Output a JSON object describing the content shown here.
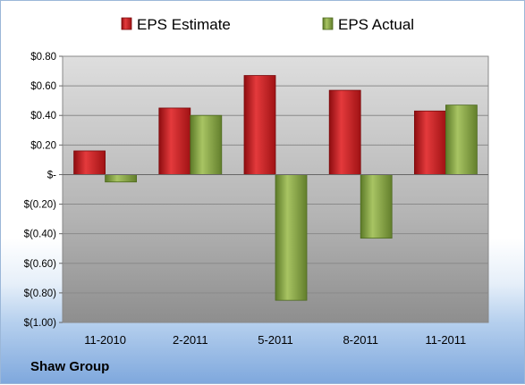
{
  "chart_data": {
    "type": "bar",
    "title": "",
    "xlabel": "",
    "ylabel": "",
    "categories": [
      "11-2010",
      "2-2011",
      "5-2011",
      "8-2011",
      "11-2011"
    ],
    "series": [
      {
        "name": "EPS Estimate",
        "color": "#c0191c",
        "values": [
          0.16,
          0.45,
          0.67,
          0.57,
          0.43
        ]
      },
      {
        "name": "EPS Actual",
        "color": "#7e9f3c",
        "values": [
          -0.05,
          0.4,
          -0.85,
          -0.43,
          0.47
        ]
      }
    ],
    "ylim": [
      -1.0,
      0.8
    ],
    "yticks": [
      {
        "value": 0.8,
        "label": "$0.80"
      },
      {
        "value": 0.6,
        "label": "$0.60"
      },
      {
        "value": 0.4,
        "label": "$0.40"
      },
      {
        "value": 0.2,
        "label": "$0.20"
      },
      {
        "value": 0.0,
        "label": "$-"
      },
      {
        "value": -0.2,
        "label": "$(0.20)"
      },
      {
        "value": -0.4,
        "label": "$(0.40)"
      },
      {
        "value": -0.6,
        "label": "$(0.60)"
      },
      {
        "value": -0.8,
        "label": "$(0.80)"
      },
      {
        "value": -1.0,
        "label": "$(1.00)"
      }
    ],
    "grid": true,
    "legend_position": "top"
  },
  "footer": {
    "company": "Shaw Group"
  }
}
